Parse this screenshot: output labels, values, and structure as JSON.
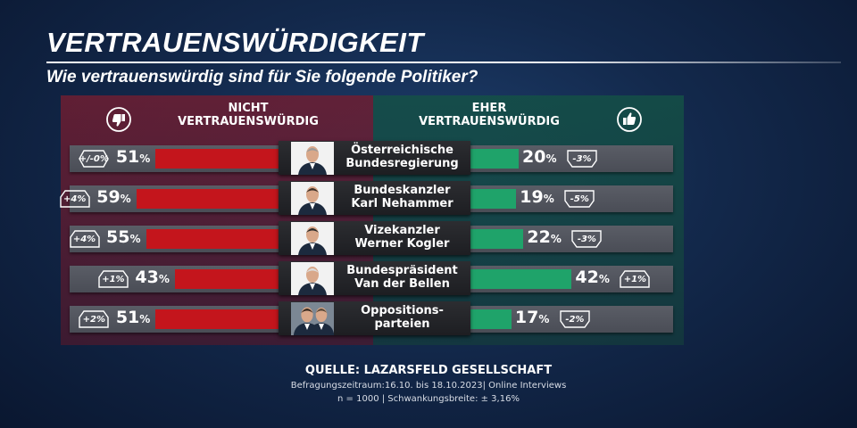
{
  "title": "VERTRAUENSWÜRDIGKEIT",
  "subtitle": "Wie vertrauenswürdig sind für Sie folgende Politiker?",
  "headers": {
    "negative": [
      "NICHT",
      "VERTRAUENSWÜRDIG"
    ],
    "positive": [
      "EHER",
      "VERTRAUENSWÜRDIG"
    ]
  },
  "icons": {
    "negative": "thumbs-down-icon",
    "positive": "thumbs-up-icon"
  },
  "colors": {
    "negative_bar": "#c4151c",
    "positive_bar": "#1fa36a"
  },
  "percent_unit": "%",
  "chart_data": {
    "type": "bar",
    "orientation": "horizontal-diverging",
    "title": "VERTRAUENSWÜRDIGKEIT",
    "subtitle": "Wie vertrauenswürdig sind für Sie folgende Politiker?",
    "categories": [
      [
        "Österreichische",
        "Bundesregierung"
      ],
      [
        "Bundeskanzler",
        "Karl Nehammer"
      ],
      [
        "Vizekanzler",
        "Werner Kogler"
      ],
      [
        "Bundespräsident",
        "Van der Bellen"
      ],
      [
        "Oppositions-",
        "parteien"
      ]
    ],
    "series": [
      {
        "name": "NICHT VERTRAUENSWÜRDIG",
        "values": [
          51,
          59,
          55,
          43,
          51
        ],
        "changes": [
          "+/-0%",
          "+4%",
          "+4%",
          "+1%",
          "+2%"
        ]
      },
      {
        "name": "EHER VERTRAUENSWÜRDIG",
        "values": [
          20,
          19,
          22,
          42,
          17
        ],
        "changes": [
          "-3%",
          "-5%",
          "-3%",
          "+1%",
          "-2%"
        ]
      }
    ],
    "xlim": [
      0,
      100
    ]
  },
  "source": {
    "label": "QUELLE:  LAZARSFELD GESELLSCHAFT",
    "period": "Befragungszeitraum:16.10. bis 18.10.2023| Online Interviews",
    "sample": "n = 1000 |  Schwankungsbreite: ± 3,16%"
  }
}
